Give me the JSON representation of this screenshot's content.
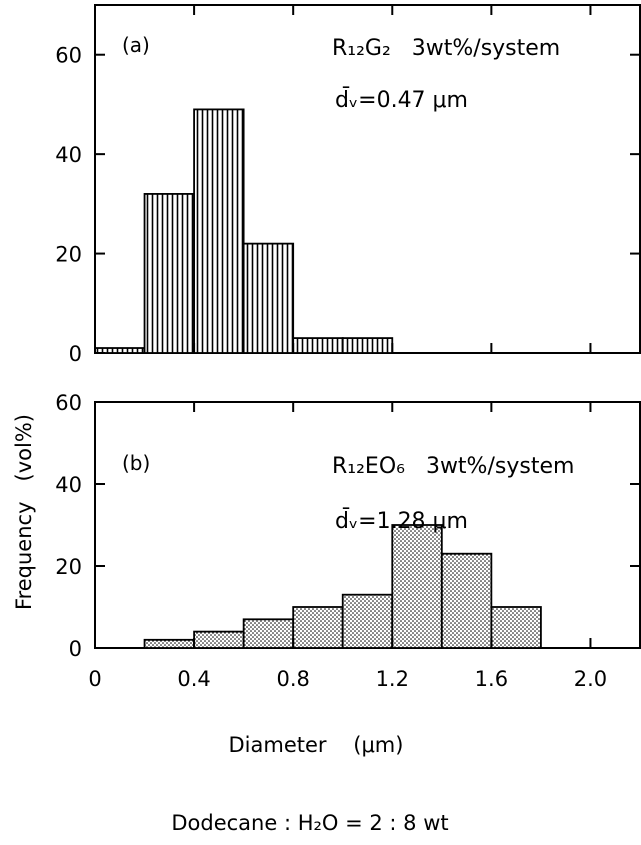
{
  "chart_data": [
    {
      "type": "bar",
      "panel_label": "(a)",
      "annotation_system": "R₁₂G₂   3wt%/system",
      "annotation_dv": "d̄ᵥ=0.47 μm",
      "x_bins": [
        [
          0.0,
          0.2
        ],
        [
          0.2,
          0.4
        ],
        [
          0.4,
          0.6
        ],
        [
          0.6,
          0.8
        ],
        [
          0.8,
          1.0
        ],
        [
          1.0,
          1.2
        ]
      ],
      "values": [
        1,
        32,
        49,
        22,
        3,
        3
      ],
      "ylim": [
        0,
        70
      ],
      "yticks": [
        0,
        20,
        40,
        60
      ],
      "xlim": [
        0,
        2.2
      ],
      "fill": "vertical-hatch"
    },
    {
      "type": "bar",
      "panel_label": "(b)",
      "annotation_system": "R₁₂EO₆   3wt%/system",
      "annotation_dv": "d̄ᵥ=1.28 μm",
      "x_bins": [
        [
          0.2,
          0.4
        ],
        [
          0.4,
          0.6
        ],
        [
          0.6,
          0.8
        ],
        [
          0.8,
          1.0
        ],
        [
          1.0,
          1.2
        ],
        [
          1.2,
          1.4
        ],
        [
          1.4,
          1.6
        ],
        [
          1.6,
          1.8
        ]
      ],
      "values": [
        2,
        4,
        7,
        10,
        13,
        30,
        23,
        10
      ],
      "ylim": [
        0,
        60
      ],
      "yticks": [
        0,
        20,
        40,
        60
      ],
      "xlim": [
        0,
        2.2
      ],
      "xticks": [
        0,
        0.4,
        0.8,
        1.2,
        1.6,
        2.0
      ],
      "xticklabels": [
        "0",
        "0.4",
        "0.8",
        "1.2",
        "1.6",
        "2.0"
      ],
      "fill": "dotted"
    }
  ],
  "ylabel": "Frequency   (vol%)",
  "xlabel": "Diameter    (μm)",
  "caption": "Dodecane : H₂O = 2 : 8 wt",
  "colors": {
    "ink": "#000000",
    "paper": "#ffffff"
  }
}
